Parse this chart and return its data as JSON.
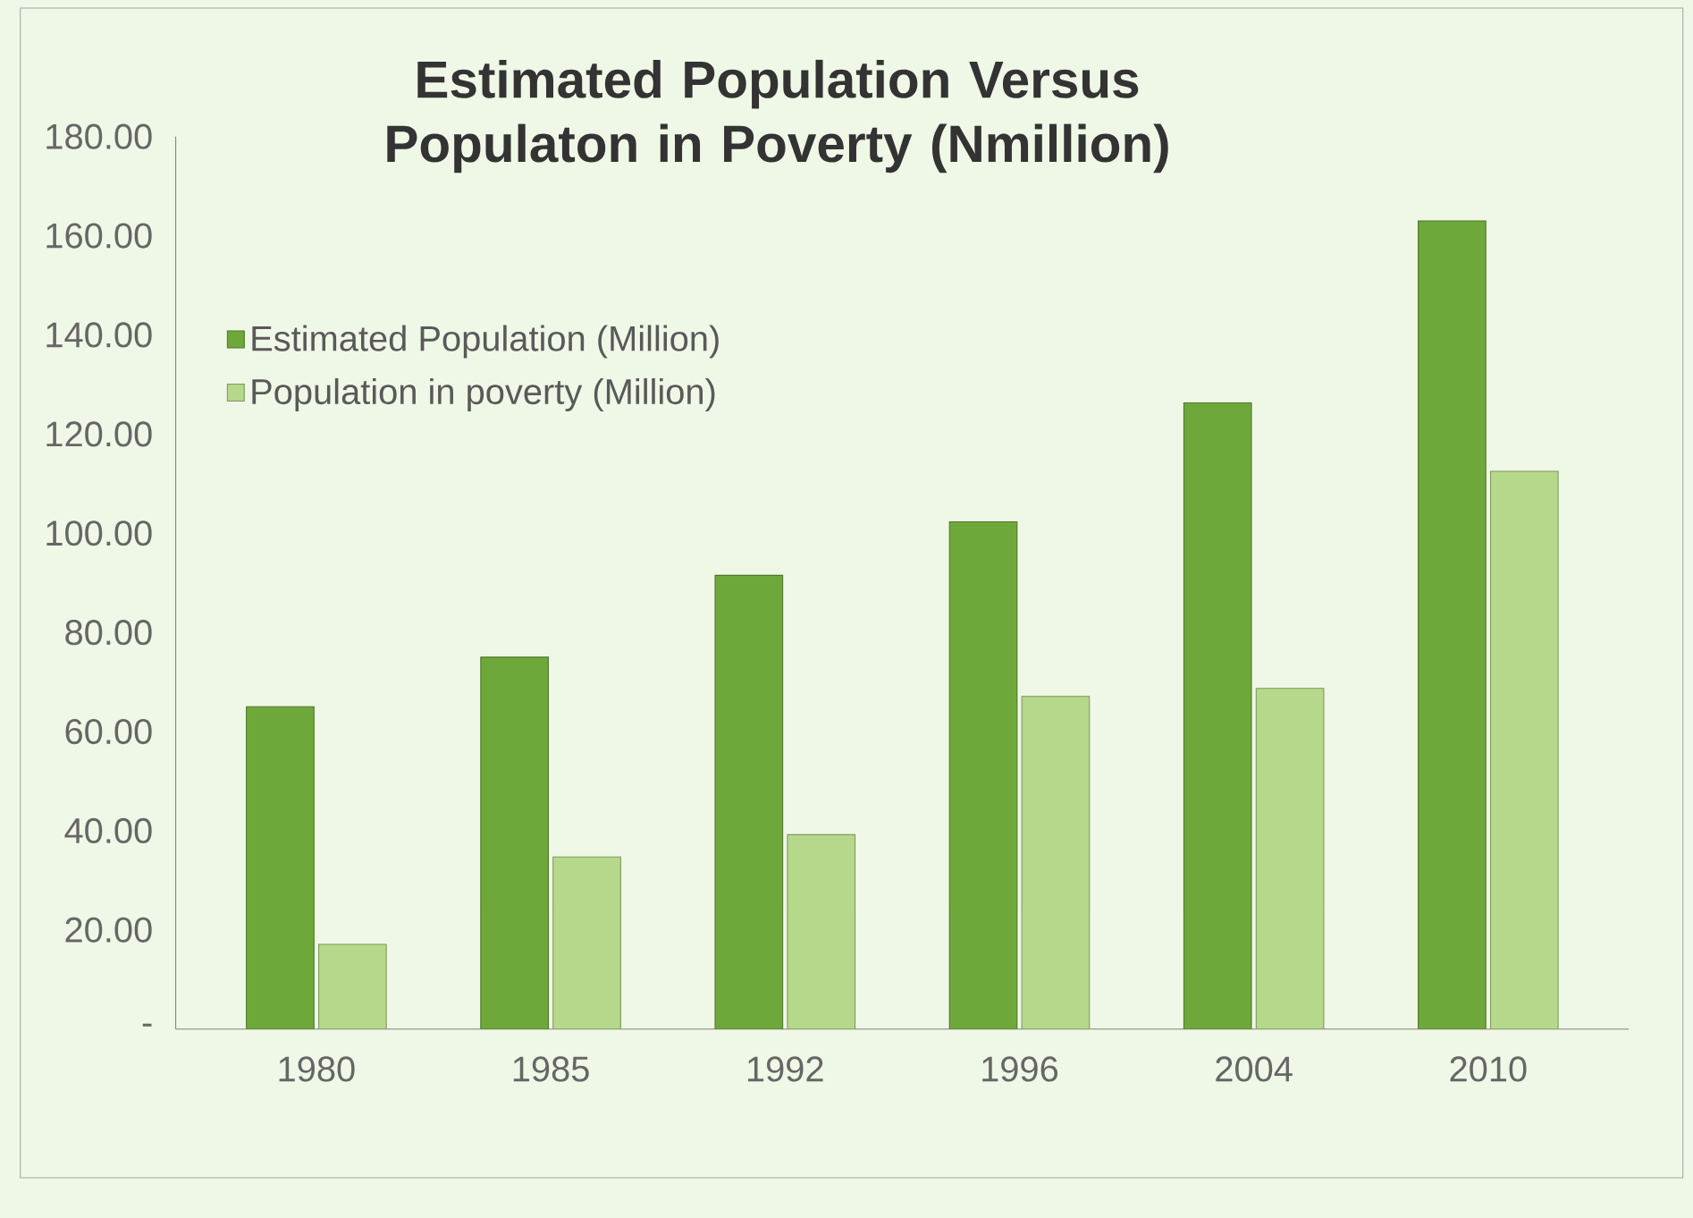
{
  "chart_data": {
    "type": "bar",
    "title": "Estimated Population Versus Populaton in Poverty (Nmillion)",
    "categories": [
      "1980",
      "1985",
      "1992",
      "1996",
      "2004",
      "2010"
    ],
    "series": [
      {
        "name": "Estimated Population (Million)",
        "color": "#6fa83a",
        "values": [
          65,
          75,
          91.5,
          102.3,
          126.3,
          163
        ]
      },
      {
        "name": "Population in poverty (Million)",
        "color": "#b5d88a",
        "values": [
          17.1,
          34.7,
          39.2,
          67.1,
          68.7,
          112.5
        ]
      }
    ],
    "ylim": [
      0,
      180
    ],
    "yticks": [
      {
        "value": 0,
        "label": "-"
      },
      {
        "value": 20,
        "label": "20.00"
      },
      {
        "value": 40,
        "label": "40.00"
      },
      {
        "value": 60,
        "label": "60.00"
      },
      {
        "value": 80,
        "label": "80.00"
      },
      {
        "value": 100,
        "label": "100.00"
      },
      {
        "value": 120,
        "label": "120.00"
      },
      {
        "value": 140,
        "label": "140.00"
      },
      {
        "value": 160,
        "label": "160.00"
      },
      {
        "value": 180,
        "label": "180.00"
      }
    ],
    "grid": false,
    "legend": "top left"
  }
}
